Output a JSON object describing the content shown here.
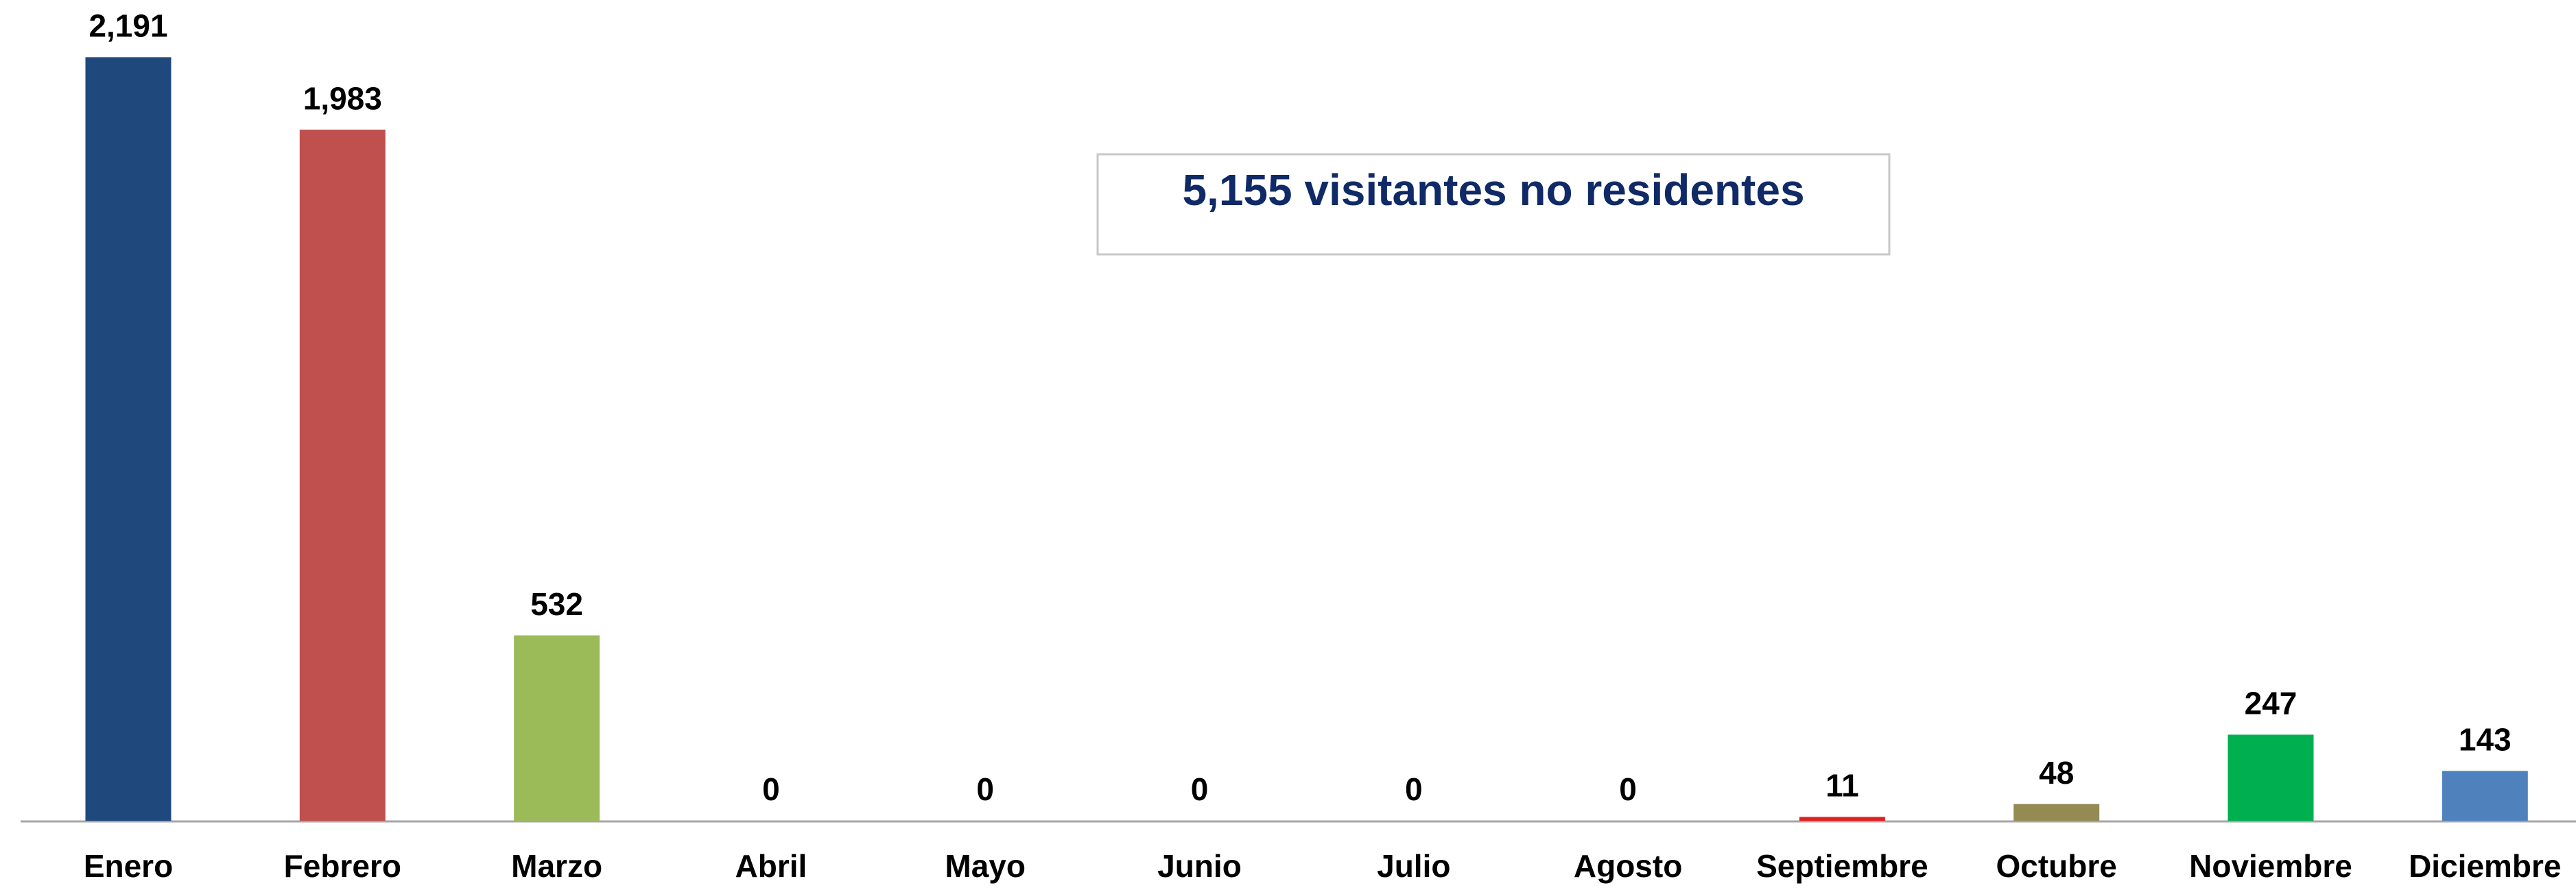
{
  "chart_data": {
    "type": "bar",
    "annotation": "5,155 visitantes no residentes",
    "categories": [
      "Enero",
      "Febrero",
      "Marzo",
      "Abril",
      "Mayo",
      "Junio",
      "Julio",
      "Agosto",
      "Septiembre",
      "Octubre",
      "Noviembre",
      "Diciembre"
    ],
    "values": [
      2191,
      1983,
      532,
      0,
      0,
      0,
      0,
      0,
      11,
      48,
      247,
      143
    ],
    "value_labels": [
      "2,191",
      "1,983",
      "532",
      "0",
      "0",
      "0",
      "0",
      "0",
      "11",
      "48",
      "247",
      "143"
    ],
    "colors": [
      "#1f497d",
      "#c0504d",
      "#9bbb59",
      null,
      null,
      null,
      null,
      null,
      "#e02020",
      "#948a54",
      "#00b050",
      "#4f81bd"
    ],
    "ylim": [
      0,
      2300
    ]
  }
}
